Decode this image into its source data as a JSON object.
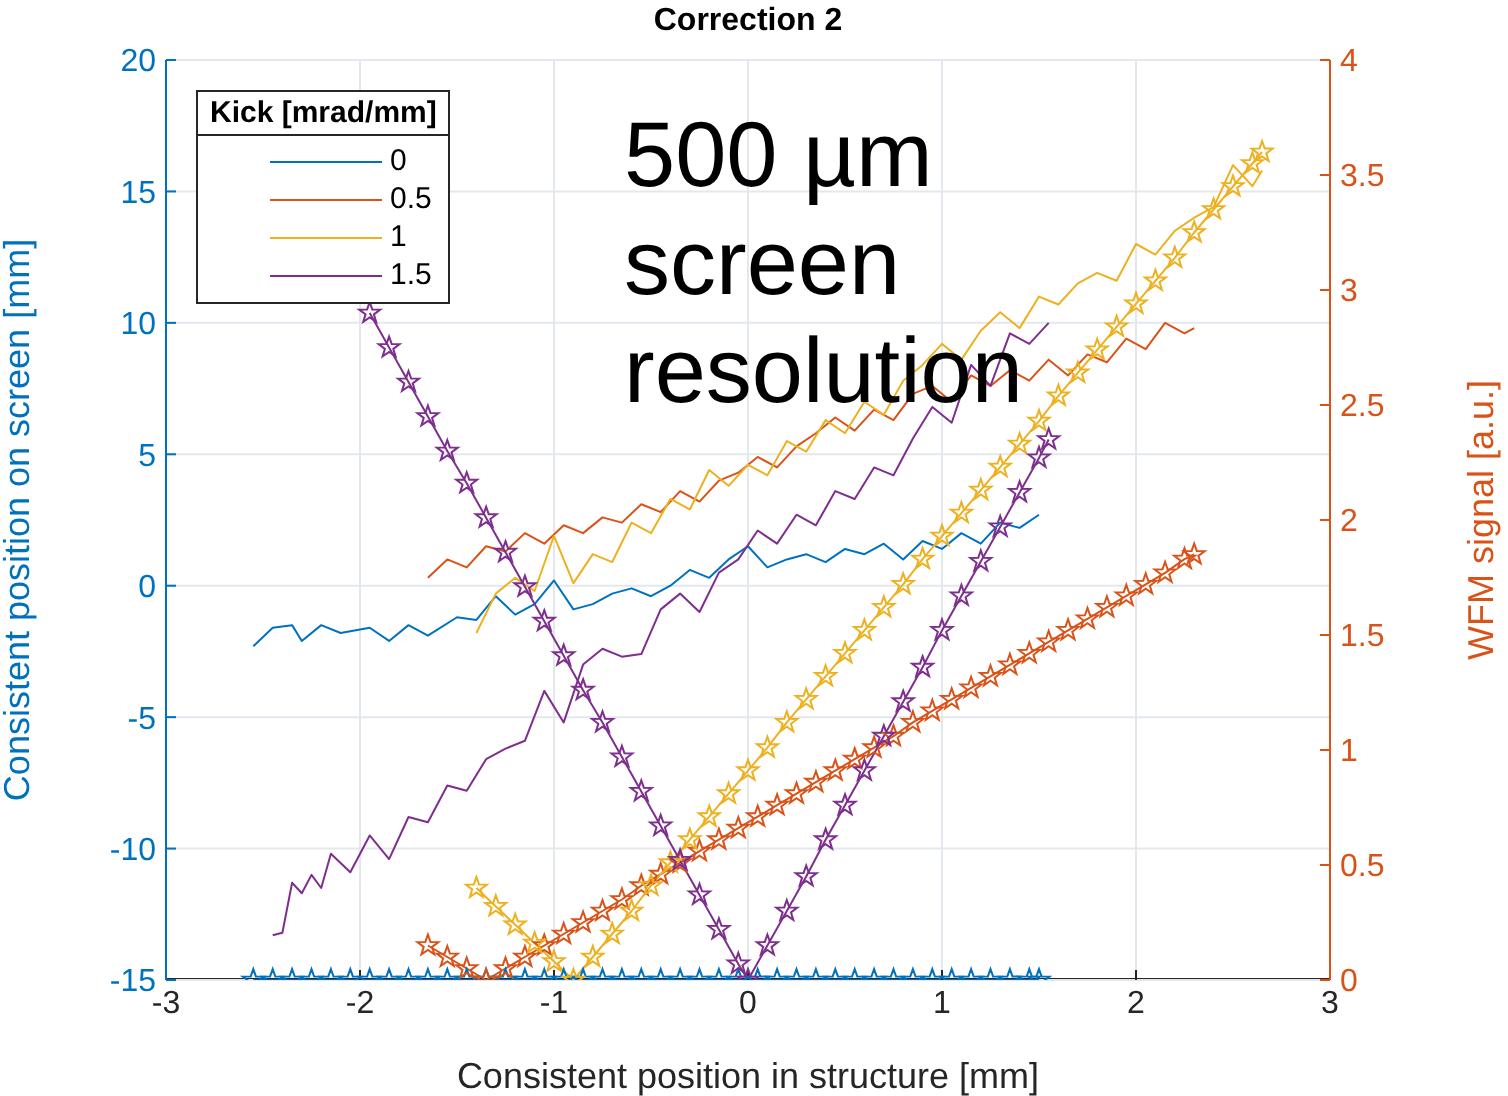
{
  "chart_data": {
    "type": "line",
    "title": "Correction 2",
    "xlabel": "Consistent position in structure [mm]",
    "ylabel": "Consistent position on screen [mm]",
    "y2label": "WFM signal [a.u.]",
    "legend_title": "Kick [mrad/mm]",
    "legend": "top left",
    "grid": true,
    "annotations": [
      "500 µm screen resolution"
    ],
    "xlim": [
      -3,
      3
    ],
    "xticks": [
      -3,
      -2,
      -1,
      0,
      1,
      2,
      3
    ],
    "ylim": [
      -15,
      20
    ],
    "yticks": [
      -15,
      -10,
      -5,
      0,
      5,
      10,
      15,
      20
    ],
    "y2lim": [
      0,
      4
    ],
    "y2ticks": [
      0,
      0.5,
      1,
      1.5,
      2,
      2.5,
      3,
      3.5,
      4
    ],
    "series": [
      {
        "name": "0",
        "color": "#0072bd",
        "marker": "none",
        "x": [
          -2.55,
          -2.45,
          -2.35,
          -2.3,
          -2.2,
          -2.1,
          -1.95,
          -1.85,
          -1.75,
          -1.65,
          -1.5,
          -1.4,
          -1.3,
          -1.2,
          -1.1,
          -1.0,
          -0.9,
          -0.8,
          -0.7,
          -0.6,
          -0.5,
          -0.4,
          -0.3,
          -0.2,
          -0.1,
          0,
          0.1,
          0.2,
          0.3,
          0.4,
          0.5,
          0.6,
          0.7,
          0.8,
          0.9,
          1.0,
          1.1,
          1.2,
          1.3,
          1.4,
          1.5
        ],
        "values": [
          -2.3,
          -1.6,
          -1.5,
          -2.1,
          -1.5,
          -1.8,
          -1.6,
          -2.1,
          -1.5,
          -1.9,
          -1.2,
          -1.3,
          -0.4,
          -1.1,
          -0.7,
          0.2,
          -0.9,
          -0.7,
          -0.3,
          -0.1,
          -0.4,
          0,
          0.6,
          0.3,
          1.0,
          1.5,
          0.7,
          1.0,
          1.2,
          0.9,
          1.4,
          1.2,
          1.6,
          1.0,
          1.7,
          1.4,
          2.0,
          1.6,
          2.4,
          2.2,
          2.7
        ]
      },
      {
        "name": "0.5",
        "color": "#d95319",
        "marker": "none",
        "x": [
          -1.65,
          -1.55,
          -1.45,
          -1.35,
          -1.25,
          -1.15,
          -1.05,
          -0.95,
          -0.85,
          -0.75,
          -0.65,
          -0.55,
          -0.45,
          -0.35,
          -0.25,
          -0.15,
          -0.05,
          0.05,
          0.15,
          0.25,
          0.35,
          0.45,
          0.55,
          0.65,
          0.75,
          0.85,
          0.95,
          1.05,
          1.15,
          1.25,
          1.35,
          1.45,
          1.55,
          1.65,
          1.75,
          1.85,
          1.95,
          2.05,
          2.15,
          2.25,
          2.3
        ],
        "values": [
          0.3,
          1.0,
          0.7,
          1.5,
          1.3,
          2.0,
          1.6,
          2.3,
          2.0,
          2.6,
          2.4,
          3.1,
          2.8,
          3.6,
          3.2,
          4.0,
          4.3,
          4.9,
          4.5,
          5.3,
          5.8,
          6.4,
          5.9,
          6.7,
          6.3,
          7.3,
          7.6,
          7.0,
          8.0,
          7.6,
          8.2,
          7.8,
          8.6,
          8.0,
          8.8,
          8.5,
          9.4,
          9.0,
          10.0,
          9.6,
          9.8
        ]
      },
      {
        "name": "1",
        "color": "#edb120",
        "marker": "none",
        "x": [
          -1.4,
          -1.3,
          -1.2,
          -1.1,
          -1.0,
          -0.9,
          -0.8,
          -0.7,
          -0.6,
          -0.5,
          -0.4,
          -0.3,
          -0.2,
          -0.1,
          0,
          0.1,
          0.2,
          0.3,
          0.4,
          0.5,
          0.6,
          0.7,
          0.8,
          0.9,
          1.0,
          1.1,
          1.2,
          1.3,
          1.4,
          1.5,
          1.6,
          1.7,
          1.8,
          1.9,
          2.0,
          2.1,
          2.2,
          2.3,
          2.4,
          2.5,
          2.6,
          2.65
        ],
        "values": [
          -1.8,
          -0.3,
          0.3,
          -0.2,
          1.9,
          0.1,
          1.2,
          0.9,
          2.4,
          2.0,
          3.3,
          2.9,
          4.4,
          3.8,
          4.6,
          4.2,
          5.5,
          5.1,
          6.3,
          5.8,
          7.0,
          6.5,
          7.8,
          8.4,
          9.2,
          8.6,
          9.7,
          10.4,
          9.8,
          11.0,
          10.7,
          11.5,
          11.9,
          11.6,
          13.0,
          12.6,
          13.5,
          14.0,
          14.4,
          16.0,
          15.2,
          15.8
        ]
      },
      {
        "name": "1.5",
        "color": "#7e2f8e",
        "marker": "none",
        "x": [
          -2.45,
          -2.4,
          -2.35,
          -2.3,
          -2.25,
          -2.2,
          -2.15,
          -2.05,
          -1.95,
          -1.85,
          -1.75,
          -1.65,
          -1.55,
          -1.45,
          -1.35,
          -1.25,
          -1.15,
          -1.05,
          -0.95,
          -0.85,
          -0.75,
          -0.65,
          -0.55,
          -0.45,
          -0.35,
          -0.25,
          -0.15,
          -0.05,
          0.05,
          0.15,
          0.25,
          0.35,
          0.45,
          0.55,
          0.65,
          0.75,
          0.85,
          0.95,
          1.05,
          1.15,
          1.25,
          1.35,
          1.45,
          1.55
        ],
        "values": [
          -13.3,
          -13.2,
          -11.3,
          -11.7,
          -11.0,
          -11.5,
          -10.2,
          -10.9,
          -9.5,
          -10.4,
          -8.8,
          -9.0,
          -7.6,
          -7.8,
          -6.6,
          -6.2,
          -5.9,
          -4.0,
          -5.2,
          -3.0,
          -2.4,
          -2.7,
          -2.6,
          -0.9,
          -0.3,
          -1.0,
          0.5,
          1.0,
          2.1,
          1.6,
          2.7,
          2.3,
          3.6,
          3.3,
          4.5,
          4.2,
          5.6,
          6.8,
          6.2,
          8.4,
          7.6,
          9.6,
          9.2,
          10.0
        ]
      },
      {
        "color": "#0072bd",
        "axis": "y2",
        "marker": "star",
        "x": [
          -2.55,
          -2.45,
          -2.35,
          -2.25,
          -2.15,
          -2.05,
          -1.95,
          -1.85,
          -1.75,
          -1.65,
          -1.55,
          -1.45,
          -1.35,
          -1.25,
          -1.15,
          -1.05,
          -0.95,
          -0.85,
          -0.75,
          -0.65,
          -0.55,
          -0.45,
          -0.35,
          -0.25,
          -0.15,
          -0.05,
          0.05,
          0.15,
          0.25,
          0.35,
          0.45,
          0.55,
          0.65,
          0.75,
          0.85,
          0.95,
          1.05,
          1.15,
          1.25,
          1.35,
          1.45,
          1.5
        ],
        "values": [
          0,
          0,
          0,
          0,
          0,
          0,
          0,
          0,
          0,
          0,
          0,
          0,
          0,
          0,
          0,
          0,
          0,
          0,
          0,
          0,
          0,
          0,
          0,
          0,
          0,
          0,
          0,
          0,
          0,
          0,
          0,
          0,
          0,
          0,
          0,
          0,
          0,
          0,
          0,
          0,
          0,
          0
        ]
      },
      {
        "color": "#d95319",
        "axis": "y2",
        "marker": "star",
        "x": [
          -1.65,
          -1.55,
          -1.45,
          -1.35,
          -1.25,
          -1.15,
          -1.05,
          -0.95,
          -0.85,
          -0.75,
          -0.65,
          -0.55,
          -0.45,
          -0.35,
          -0.25,
          -0.15,
          -0.05,
          0.05,
          0.15,
          0.25,
          0.35,
          0.45,
          0.55,
          0.65,
          0.75,
          0.85,
          0.95,
          1.05,
          1.15,
          1.25,
          1.35,
          1.45,
          1.55,
          1.65,
          1.75,
          1.85,
          1.95,
          2.05,
          2.15,
          2.25,
          2.3
        ],
        "values": [
          0.15,
          0.1,
          0.05,
          0,
          0.05,
          0.1,
          0.15,
          0.2,
          0.25,
          0.3,
          0.35,
          0.41,
          0.46,
          0.51,
          0.56,
          0.61,
          0.66,
          0.71,
          0.76,
          0.81,
          0.86,
          0.91,
          0.96,
          1.01,
          1.06,
          1.12,
          1.17,
          1.22,
          1.27,
          1.32,
          1.37,
          1.42,
          1.47,
          1.52,
          1.57,
          1.62,
          1.67,
          1.72,
          1.77,
          1.83,
          1.85
        ]
      },
      {
        "color": "#edb120",
        "axis": "y2",
        "marker": "star",
        "x": [
          -1.4,
          -1.3,
          -1.2,
          -1.1,
          -1.0,
          -0.9,
          -0.8,
          -0.7,
          -0.6,
          -0.5,
          -0.4,
          -0.3,
          -0.2,
          -0.1,
          0,
          0.1,
          0.2,
          0.3,
          0.4,
          0.5,
          0.6,
          0.7,
          0.8,
          0.9,
          1.0,
          1.1,
          1.2,
          1.3,
          1.4,
          1.5,
          1.6,
          1.7,
          1.8,
          1.9,
          2.0,
          2.1,
          2.2,
          2.3,
          2.4,
          2.5,
          2.6,
          2.65
        ],
        "values": [
          0.4,
          0.32,
          0.24,
          0.16,
          0.08,
          0,
          0.1,
          0.2,
          0.3,
          0.41,
          0.51,
          0.61,
          0.71,
          0.81,
          0.91,
          1.01,
          1.12,
          1.22,
          1.32,
          1.42,
          1.52,
          1.62,
          1.72,
          1.83,
          1.93,
          2.03,
          2.13,
          2.23,
          2.33,
          2.43,
          2.54,
          2.64,
          2.74,
          2.84,
          2.94,
          3.04,
          3.14,
          3.25,
          3.35,
          3.45,
          3.55,
          3.6
        ]
      },
      {
        "color": "#7e2f8e",
        "axis": "y2",
        "marker": "star",
        "x": [
          -1.95,
          -1.85,
          -1.75,
          -1.65,
          -1.55,
          -1.45,
          -1.35,
          -1.25,
          -1.15,
          -1.05,
          -0.95,
          -0.85,
          -0.75,
          -0.65,
          -0.55,
          -0.45,
          -0.35,
          -0.25,
          -0.15,
          -0.05,
          0,
          0.1,
          0.2,
          0.3,
          0.4,
          0.5,
          0.6,
          0.7,
          0.8,
          0.9,
          1.0,
          1.1,
          1.2,
          1.3,
          1.4,
          1.5,
          1.55
        ],
        "values": [
          2.9,
          2.75,
          2.6,
          2.45,
          2.3,
          2.16,
          2.01,
          1.86,
          1.71,
          1.56,
          1.41,
          1.26,
          1.12,
          0.97,
          0.82,
          0.67,
          0.52,
          0.37,
          0.22,
          0.07,
          0,
          0.15,
          0.3,
          0.45,
          0.61,
          0.76,
          0.91,
          1.06,
          1.21,
          1.36,
          1.52,
          1.67,
          1.82,
          1.97,
          2.12,
          2.27,
          2.35
        ]
      }
    ]
  }
}
